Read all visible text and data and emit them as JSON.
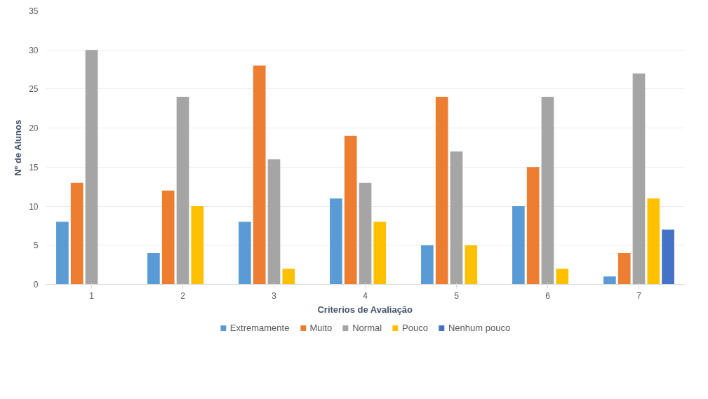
{
  "chart_data": {
    "type": "bar",
    "xlabel": "Criterios de Avaliação",
    "ylabel": "Nº de Alunos",
    "categories": [
      "1",
      "2",
      "3",
      "4",
      "5",
      "6",
      "7"
    ],
    "series": [
      {
        "name": "Extremamente",
        "color": "#5b9bd5",
        "values": [
          8,
          4,
          8,
          11,
          5,
          10,
          1
        ]
      },
      {
        "name": "Muito",
        "color": "#ed7d31",
        "values": [
          13,
          12,
          28,
          19,
          24,
          15,
          4
        ]
      },
      {
        "name": "Normal",
        "color": "#a5a5a5",
        "values": [
          30,
          24,
          16,
          13,
          17,
          24,
          27
        ]
      },
      {
        "name": "Pouco",
        "color": "#ffc000",
        "values": [
          0,
          10,
          2,
          8,
          5,
          2,
          11
        ]
      },
      {
        "name": "Nenhum pouco",
        "color": "#4472c4",
        "values": [
          0,
          0,
          0,
          0,
          0,
          0,
          7
        ]
      }
    ],
    "ylim": [
      0,
      35
    ],
    "yticks": [
      0,
      5,
      10,
      15,
      20,
      25,
      30,
      35
    ],
    "grid": "y",
    "legend": "bottom"
  }
}
